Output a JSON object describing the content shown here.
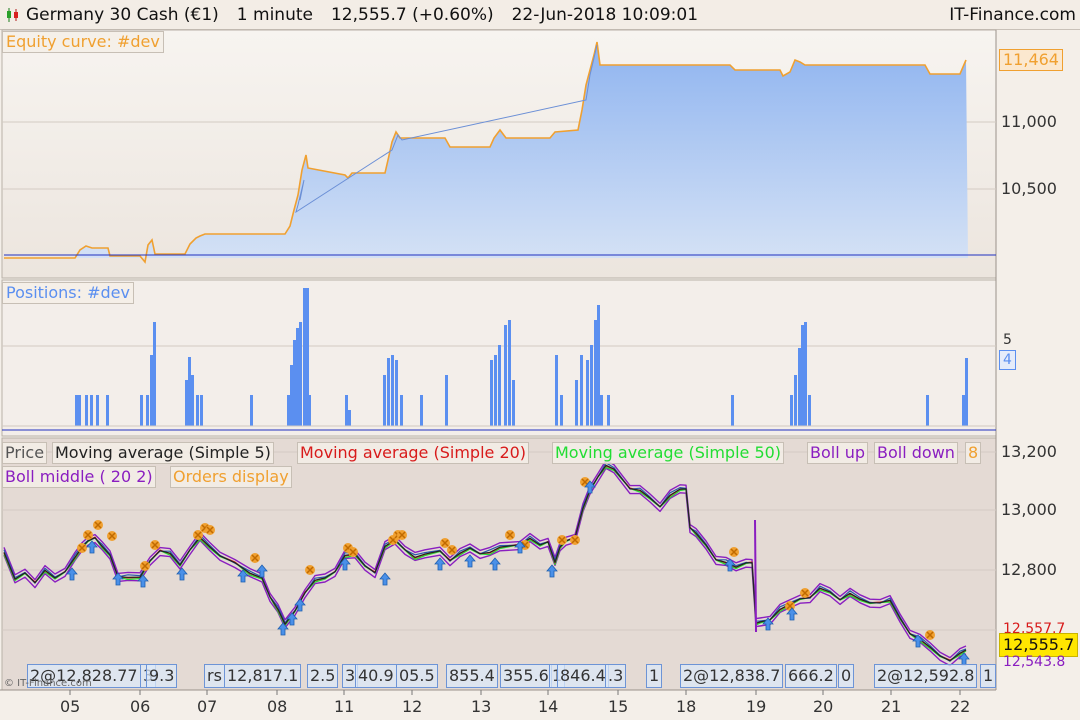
{
  "title": {
    "instrument": "Germany 30 Cash (€1)",
    "timeframe": "1 minute",
    "price": "12,555.7 (+0.60%)",
    "datetime": "22-Jun-2018 10:09:01",
    "brand": "IT-Finance.com"
  },
  "colors": {
    "equity_line": "#f0a030",
    "equity_fill": "#8fb4f0",
    "positions_bars": "#5b8ff0",
    "ma5": "#222222",
    "ma20": "#d81b1b",
    "ma50": "#22dd33",
    "boll": "#8a1ec0",
    "orders": "#f0a030",
    "price_badge": "#ffe600"
  },
  "equity_panel": {
    "label": "Equity curve: #dev",
    "axis_ticks": [
      "11,000",
      "10,500"
    ],
    "value_badge": "11,464"
  },
  "positions_panel": {
    "label": "Positions: #dev",
    "axis_ticks": [
      "5"
    ],
    "value_badge": "4"
  },
  "price_panel": {
    "legend_row1": [
      "Price",
      "Moving average (Simple 5)",
      "Moving average (Simple 20)",
      "Moving average (Simple 50)",
      "Boll up",
      "Boll down"
    ],
    "legend_row1_tail": "8",
    "legend_row2": [
      "Boll middle ( 20 2)",
      "Orders display"
    ],
    "axis_ticks": [
      "13,200",
      "13,000",
      "12,800"
    ],
    "badge_upper": "12,557.7",
    "badge_price": "12,555.7",
    "badge_lower": "12,543.8",
    "order_labels": [
      "2@12,828.77",
      "3",
      "9.3",
      "rs",
      "12,817.1",
      "2.5",
      "3",
      "40.9",
      "05.5",
      "855.4",
      "355.6",
      "1",
      "846.4",
      ".3",
      "1",
      "2@12,838.7",
      "666.2",
      "0",
      "2@12,592.8",
      "1"
    ],
    "copyright": "© IT-Finance.com"
  },
  "x_axis": {
    "labels": [
      "05",
      "06",
      "07",
      "08",
      "11",
      "12",
      "13",
      "14",
      "15",
      "18",
      "19",
      "20",
      "21",
      "22"
    ]
  }
}
